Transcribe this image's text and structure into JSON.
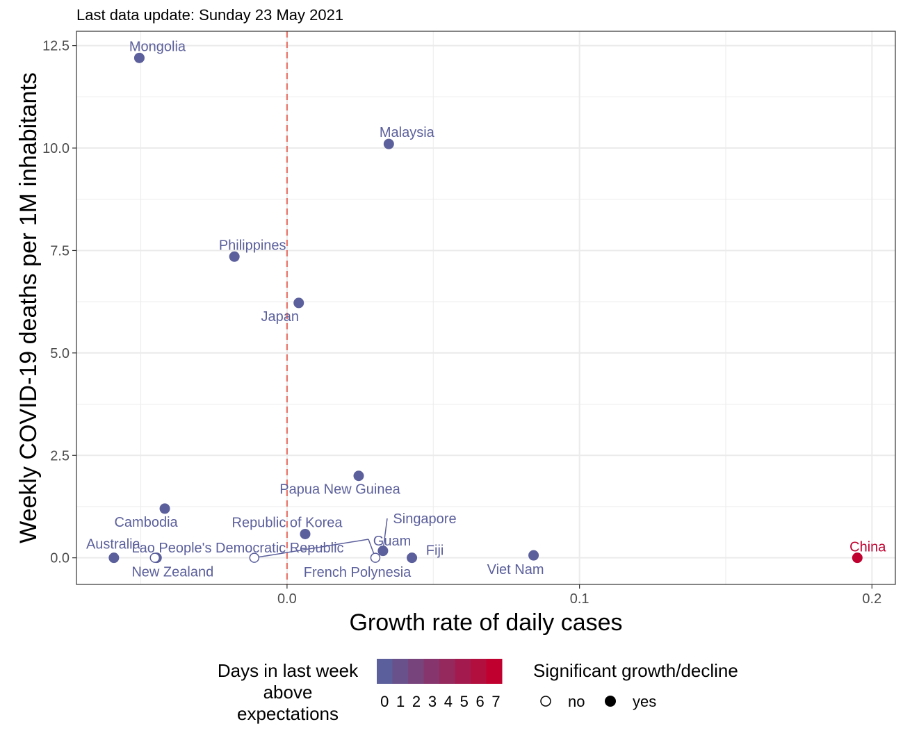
{
  "chart_data": {
    "type": "scatter",
    "subtitle": "Last data update: Sunday 23 May 2021",
    "xlabel": "Growth rate of daily cases",
    "ylabel": "Weekly COVID-19 deaths per 1M inhabitants",
    "xlim": [
      -0.072,
      0.208
    ],
    "ylim": [
      -0.65,
      12.85
    ],
    "x_ticks": [
      0.0,
      0.1,
      0.2
    ],
    "x_tick_labels": [
      "0.0",
      "0.1",
      "0.2"
    ],
    "y_ticks": [
      0.0,
      2.5,
      5.0,
      7.5,
      10.0,
      12.5
    ],
    "y_tick_labels": [
      "0.0",
      "2.5",
      "5.0",
      "7.5",
      "10.0",
      "12.5"
    ],
    "grid": true,
    "reference_line": {
      "x": 0.0,
      "style": "dashed",
      "color": "#e8756a"
    },
    "colors": {
      "low": "#5b5f9b",
      "high": "#c0002f"
    },
    "points": [
      {
        "name": "Mongolia",
        "x": -0.0505,
        "y": 12.2,
        "days": 0,
        "significant": true
      },
      {
        "name": "Malaysia",
        "x": 0.0348,
        "y": 10.1,
        "days": 0,
        "significant": true
      },
      {
        "name": "Philippines",
        "x": -0.018,
        "y": 7.35,
        "days": 0,
        "significant": true
      },
      {
        "name": "Japan",
        "x": 0.004,
        "y": 6.22,
        "days": 0,
        "significant": true
      },
      {
        "name": "Papua New Guinea",
        "x": 0.0245,
        "y": 2.0,
        "days": 0,
        "significant": true
      },
      {
        "name": "Cambodia",
        "x": -0.0418,
        "y": 1.2,
        "days": 0,
        "significant": true
      },
      {
        "name": "Republic of Korea",
        "x": 0.0062,
        "y": 0.58,
        "days": 0,
        "significant": true
      },
      {
        "name": "Singapore",
        "x": 0.0328,
        "y": 0.17,
        "days": 0,
        "significant": true
      },
      {
        "name": "Guam",
        "x": 0.0302,
        "y": 0.0,
        "days": 0,
        "significant": false
      },
      {
        "name": "Australia",
        "x": -0.0592,
        "y": 0.0,
        "days": 0,
        "significant": true
      },
      {
        "name": "New Zealand",
        "x": -0.0446,
        "y": 0.0,
        "days": 0,
        "significant": true
      },
      {
        "name": "Lao People's Democratic Republic",
        "x": -0.0112,
        "y": 0.0,
        "days": 0,
        "significant": false
      },
      {
        "name": "French Polynesia",
        "x": -0.0452,
        "y": 0.0,
        "days": 0,
        "significant": false
      },
      {
        "name": "Fiji",
        "x": 0.0427,
        "y": 0.0,
        "days": 0,
        "significant": true
      },
      {
        "name": "Viet Nam",
        "x": 0.0843,
        "y": 0.06,
        "days": 0,
        "significant": true
      },
      {
        "name": "China",
        "x": 0.195,
        "y": 0.0,
        "days": 7,
        "significant": true
      }
    ],
    "legend": {
      "color_title": [
        "Days in last week",
        "above",
        "expectations"
      ],
      "color_values": [
        "0",
        "1",
        "2",
        "3",
        "4",
        "5",
        "6",
        "7"
      ],
      "shape_title": "Significant growth/decline",
      "shape_values": [
        "no",
        "yes"
      ],
      "placement": "bottom"
    }
  }
}
